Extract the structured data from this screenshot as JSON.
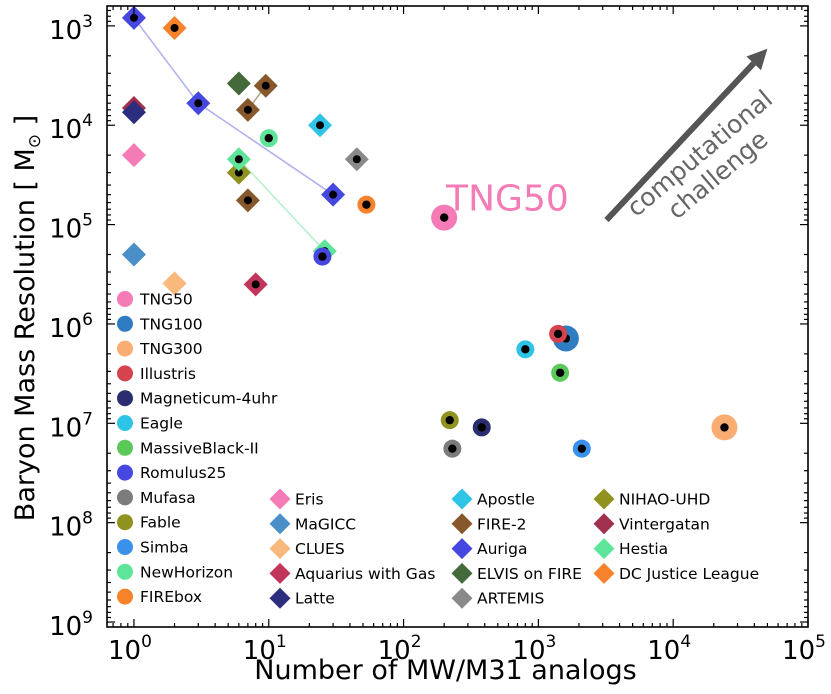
{
  "chart_data": {
    "type": "scatter",
    "xscale": "log",
    "yscale": "log-inverted",
    "xlim": [
      0.631,
      100000
    ],
    "ylim_exponent": [
      2.8,
      9.05
    ],
    "xlabel": "Number of MW/M31 analogs",
    "ylabel_prefix": "Baryon Mass Resolution [ M",
    "ylabel_sub": "⊙",
    "ylabel_suffix": " ]",
    "xticks": [
      {
        "base": "10",
        "exp": "0",
        "value": 1
      },
      {
        "base": "10",
        "exp": "1",
        "value": 10
      },
      {
        "base": "10",
        "exp": "2",
        "value": 100
      },
      {
        "base": "10",
        "exp": "3",
        "value": 1000
      },
      {
        "base": "10",
        "exp": "4",
        "value": 10000
      },
      {
        "base": "10",
        "exp": "5",
        "value": 100000
      }
    ],
    "yticks": [
      {
        "base": "10",
        "exp": "3",
        "value": 1000
      },
      {
        "base": "10",
        "exp": "4",
        "value": 10000
      },
      {
        "base": "10",
        "exp": "5",
        "value": 100000
      },
      {
        "base": "10",
        "exp": "6",
        "value": 1000000
      },
      {
        "base": "10",
        "exp": "7",
        "value": 10000000
      },
      {
        "base": "10",
        "exp": "8",
        "value": 100000000
      },
      {
        "base": "10",
        "exp": "9",
        "value": 1000000000
      }
    ],
    "annotations": {
      "highlight": {
        "text": "TNG50",
        "color": "#f47bb5",
        "x": 200,
        "y": 60000,
        "angle": 0
      },
      "arrow": {
        "line1": "computational",
        "line2": "challenge",
        "color": "#555555",
        "x_from": 3200,
        "y_from": 90000,
        "x_to": 50000,
        "y_to": 1700,
        "angle": -40
      }
    },
    "circle_series": [
      {
        "name": "TNG50",
        "color": "#f47bb5",
        "big": true,
        "points": [
          {
            "x": 200,
            "y": 85000
          }
        ]
      },
      {
        "name": "TNG100",
        "color": "#2f7dc1",
        "big": true,
        "points": [
          {
            "x": 1600,
            "y": 1400000
          }
        ]
      },
      {
        "name": "TNG300",
        "color": "#f9ad72",
        "big": true,
        "points": [
          {
            "x": 24000,
            "y": 11000000
          }
        ]
      },
      {
        "name": "Illustris",
        "color": "#d4434e",
        "big": false,
        "points": [
          {
            "x": 1400,
            "y": 1260000
          }
        ]
      },
      {
        "name": "Magneticum-4uhr",
        "color": "#2a2d70",
        "big": false,
        "points": [
          {
            "x": 380,
            "y": 11000000
          }
        ]
      },
      {
        "name": "Eagle",
        "color": "#2ec4e6",
        "big": false,
        "points": [
          {
            "x": 800,
            "y": 1800000
          }
        ]
      },
      {
        "name": "MassiveBlack-II",
        "color": "#5ac959",
        "big": false,
        "points": [
          {
            "x": 1450,
            "y": 3100000
          }
        ]
      },
      {
        "name": "Romulus25",
        "color": "#4646e0",
        "big": false,
        "points": [
          {
            "x": 25,
            "y": 210000
          }
        ]
      },
      {
        "name": "Mufasa",
        "color": "#7c7c7c",
        "big": false,
        "points": [
          {
            "x": 230,
            "y": 18000000
          }
        ]
      },
      {
        "name": "Fable",
        "color": "#8f921f",
        "big": false,
        "points": [
          {
            "x": 220,
            "y": 9300000
          }
        ]
      },
      {
        "name": "Simba",
        "color": "#3a91ec",
        "big": false,
        "points": [
          {
            "x": 2100,
            "y": 18000000
          }
        ]
      },
      {
        "name": "NewHorizon",
        "color": "#5fe59a",
        "big": false,
        "points": [
          {
            "x": 10,
            "y": 13500
          }
        ]
      },
      {
        "name": "FIREbox",
        "color": "#f6822b",
        "big": false,
        "points": [
          {
            "x": 53,
            "y": 63000
          }
        ]
      }
    ],
    "diamond_series": [
      {
        "name": "Eris",
        "color": "#f47bb5",
        "points": [
          {
            "x": 1,
            "y": 20000,
            "dot": false
          }
        ]
      },
      {
        "name": "MaGICC",
        "color": "#4b8fc8",
        "points": [
          {
            "x": 1,
            "y": 200000,
            "dot": false
          }
        ]
      },
      {
        "name": "Apostle",
        "color": "#2ec4e6",
        "points": [
          {
            "x": 24,
            "y": 10000,
            "dot": true
          }
        ]
      },
      {
        "name": "FIRE-2",
        "color": "#87582c",
        "points": [
          {
            "x": 7,
            "y": 7000,
            "dot": true
          },
          {
            "x": 9.5,
            "y": 4000,
            "dot": true
          },
          {
            "x": 7,
            "y": 57000,
            "dot": true
          }
        ]
      },
      {
        "name": "NIHAO-UHD",
        "color": "#8f921f",
        "points": [
          {
            "x": 6,
            "y": 30000,
            "dot": true
          }
        ]
      },
      {
        "name": "Vintergatan",
        "color": "#a0304e",
        "points": [
          {
            "x": 1,
            "y": 6700,
            "dot": false
          }
        ]
      },
      {
        "name": "CLUES",
        "color": "#f9b97d",
        "points": [
          {
            "x": 2,
            "y": 390000,
            "dot": false
          }
        ]
      },
      {
        "name": "Auriga",
        "color": "#4646e0",
        "points": [
          {
            "x": 1,
            "y": 830,
            "dot": true
          },
          {
            "x": 3,
            "y": 6000,
            "dot": true
          },
          {
            "x": 30,
            "y": 50000,
            "dot": true
          }
        ]
      },
      {
        "name": "Hestia",
        "color": "#5fe59a",
        "points": [
          {
            "x": 6,
            "y": 22000,
            "dot": true
          },
          {
            "x": 26,
            "y": 185000,
            "dot": true
          }
        ]
      },
      {
        "name": "Aquarius with Gas",
        "color": "#c2365c",
        "points": [
          {
            "x": 8,
            "y": 400000,
            "dot": true
          }
        ]
      },
      {
        "name": "ELVIS on FIRE",
        "color": "#44693a",
        "points": [
          {
            "x": 6,
            "y": 3800,
            "dot": false
          }
        ]
      },
      {
        "name": "DC Justice League",
        "color": "#f6822b",
        "points": [
          {
            "x": 2,
            "y": 1050,
            "dot": true
          }
        ]
      },
      {
        "name": "Latte",
        "color": "#2d2d80",
        "points": [
          {
            "x": 1,
            "y": 7400,
            "dot": false
          }
        ]
      },
      {
        "name": "ARTEMIS",
        "color": "#8a8a8a",
        "points": [
          {
            "x": 45,
            "y": 22000,
            "dot": true
          }
        ]
      }
    ],
    "connector_lines": [
      {
        "color": "#b2b2f0",
        "points": [
          {
            "x": 1,
            "y": 830
          },
          {
            "x": 3,
            "y": 6000
          },
          {
            "x": 30,
            "y": 50000
          }
        ]
      },
      {
        "color": "#b8f0cf",
        "points": [
          {
            "x": 6,
            "y": 22000
          },
          {
            "x": 26,
            "y": 185000
          }
        ]
      },
      {
        "color": "#b9a184",
        "points": [
          {
            "x": 7,
            "y": 7000
          },
          {
            "x": 9.5,
            "y": 4000
          }
        ]
      }
    ],
    "legend": {
      "placement": "bottom-left",
      "column1": [
        {
          "label": "TNG50",
          "color": "#f47bb5",
          "shape": "circle"
        },
        {
          "label": "TNG100",
          "color": "#2f7dc1",
          "shape": "circle"
        },
        {
          "label": "TNG300",
          "color": "#f9ad72",
          "shape": "circle"
        },
        {
          "label": "Illustris",
          "color": "#d4434e",
          "shape": "circle"
        },
        {
          "label": "Magneticum-4uhr",
          "color": "#2a2d70",
          "shape": "circle"
        },
        {
          "label": "Eagle",
          "color": "#2ec4e6",
          "shape": "circle"
        },
        {
          "label": "MassiveBlack-II",
          "color": "#5ac959",
          "shape": "circle"
        },
        {
          "label": "Romulus25",
          "color": "#4646e0",
          "shape": "circle"
        },
        {
          "label": "Mufasa",
          "color": "#7c7c7c",
          "shape": "circle"
        },
        {
          "label": "Fable",
          "color": "#8f921f",
          "shape": "circle"
        },
        {
          "label": "Simba",
          "color": "#3a91ec",
          "shape": "circle"
        },
        {
          "label": "NewHorizon",
          "color": "#5fe59a",
          "shape": "circle"
        },
        {
          "label": "FIREbox",
          "color": "#f6822b",
          "shape": "circle"
        }
      ],
      "column2": [
        {
          "label": "Eris",
          "color": "#f47bb5",
          "shape": "diamond"
        },
        {
          "label": "MaGICC",
          "color": "#4b8fc8",
          "shape": "diamond"
        },
        {
          "label": "CLUES",
          "color": "#f9b97d",
          "shape": "diamond"
        },
        {
          "label": "Aquarius with Gas",
          "color": "#c2365c",
          "shape": "diamond"
        },
        {
          "label": "Latte",
          "color": "#2d2d80",
          "shape": "diamond"
        }
      ],
      "column3": [
        {
          "label": "Apostle",
          "color": "#2ec4e6",
          "shape": "diamond"
        },
        {
          "label": "FIRE-2",
          "color": "#87582c",
          "shape": "diamond"
        },
        {
          "label": "Auriga",
          "color": "#4646e0",
          "shape": "diamond"
        },
        {
          "label": "ELVIS on FIRE",
          "color": "#44693a",
          "shape": "diamond"
        },
        {
          "label": "ARTEMIS",
          "color": "#8a8a8a",
          "shape": "diamond"
        }
      ],
      "column4": [
        {
          "label": "NIHAO-UHD",
          "color": "#8f921f",
          "shape": "diamond"
        },
        {
          "label": "Vintergatan",
          "color": "#a0304e",
          "shape": "diamond"
        },
        {
          "label": "Hestia",
          "color": "#5fe59a",
          "shape": "diamond"
        },
        {
          "label": "DC Justice League",
          "color": "#f6822b",
          "shape": "diamond"
        }
      ]
    }
  }
}
